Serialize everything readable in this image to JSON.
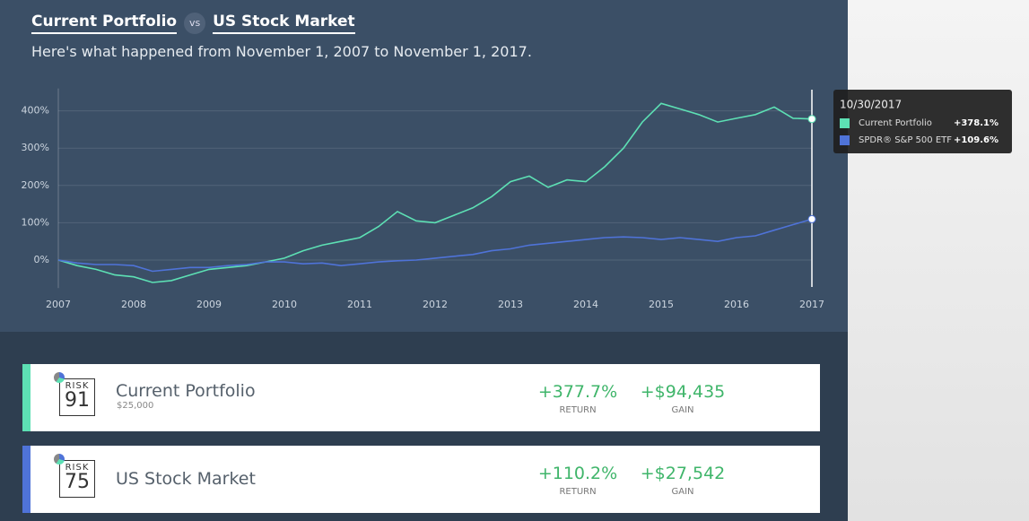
{
  "header": {
    "left": "Current Portfolio",
    "vs": "vs",
    "right": "US Stock Market",
    "subtitle": "Here's what happened from November 1, 2007 to November 1, 2017."
  },
  "chart_data": {
    "type": "line",
    "x": [
      2007,
      2007.25,
      2007.5,
      2007.75,
      2008,
      2008.25,
      2008.5,
      2008.75,
      2009,
      2009.25,
      2009.5,
      2009.75,
      2010,
      2010.25,
      2010.5,
      2010.75,
      2011,
      2011.25,
      2011.5,
      2011.75,
      2012,
      2012.25,
      2012.5,
      2012.75,
      2013,
      2013.25,
      2013.5,
      2013.75,
      2014,
      2014.25,
      2014.5,
      2014.75,
      2015,
      2015.25,
      2015.5,
      2015.75,
      2016,
      2016.25,
      2016.5,
      2016.75,
      2017
    ],
    "series": [
      {
        "name": "Current Portfolio",
        "color": "#5de0b4",
        "values": [
          0,
          -15,
          -25,
          -40,
          -45,
          -60,
          -55,
          -40,
          -25,
          -20,
          -15,
          -5,
          5,
          25,
          40,
          50,
          60,
          90,
          130,
          105,
          100,
          120,
          140,
          170,
          210,
          225,
          195,
          215,
          210,
          250,
          300,
          370,
          420,
          405,
          390,
          370,
          380,
          390,
          410,
          380,
          378.1
        ]
      },
      {
        "name": "SPDR® S&P 500 ETF",
        "color": "#4f73d8",
        "values": [
          0,
          -8,
          -12,
          -12,
          -15,
          -30,
          -25,
          -20,
          -20,
          -15,
          -12,
          -5,
          -5,
          -10,
          -8,
          -15,
          -10,
          -5,
          -2,
          0,
          5,
          10,
          15,
          25,
          30,
          40,
          45,
          50,
          55,
          60,
          62,
          60,
          55,
          60,
          55,
          50,
          60,
          65,
          80,
          95,
          109.6
        ]
      }
    ],
    "xlim": [
      2007,
      2017
    ],
    "xticks": [
      2007,
      2008,
      2009,
      2010,
      2011,
      2012,
      2013,
      2014,
      2015,
      2016,
      2017
    ],
    "ylim": [
      -75,
      460
    ],
    "yticks": [
      {
        "value": 0,
        "label": "0%"
      },
      {
        "value": 100,
        "label": "100%"
      },
      {
        "value": 200,
        "label": "200%"
      },
      {
        "value": 300,
        "label": "300%"
      },
      {
        "value": 400,
        "label": "400%"
      }
    ],
    "grid": true,
    "tooltip": {
      "date": "10/30/2017",
      "items": [
        {
          "value": 378.1,
          "label": "+378.1%"
        },
        {
          "value": 109.6,
          "label": "+109.6%"
        }
      ]
    }
  },
  "cards": [
    {
      "risk": "RISK",
      "score": "91",
      "name": "Current Portfolio",
      "amount": "$25,000",
      "return": "+377.7%",
      "return_label": "RETURN",
      "gain": "+$94,435",
      "gain_label": "GAIN"
    },
    {
      "risk": "RISK",
      "score": "75",
      "name": "US Stock Market",
      "return": "+110.2%",
      "return_label": "RETURN",
      "gain": "+$27,542",
      "gain_label": "GAIN"
    }
  ]
}
